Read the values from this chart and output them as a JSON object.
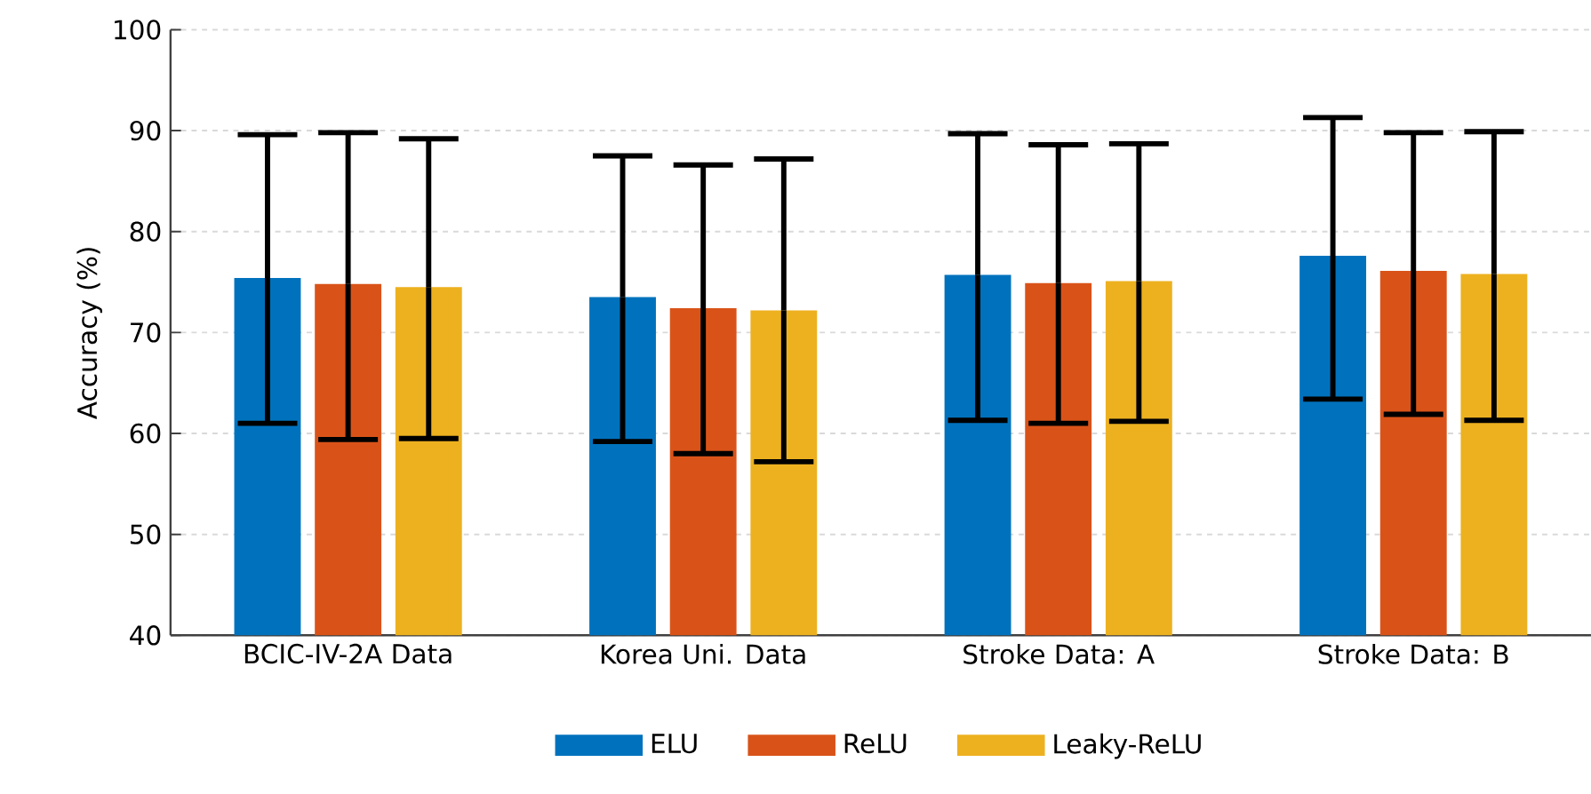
{
  "chart_data": {
    "type": "bar",
    "ylabel": "Accuracy (%)",
    "categories": [
      "BCIC-IV-2A Data",
      "Korea Uni. Data",
      "Stroke Data: A",
      "Stroke Data: B"
    ],
    "series": [
      {
        "name": "ELU",
        "color": "#0072bd",
        "values": [
          75.4,
          73.5,
          75.7,
          77.6
        ],
        "errors": [
          [
            61.0,
            89.6
          ],
          [
            59.2,
            87.5
          ],
          [
            61.3,
            89.7
          ],
          [
            63.4,
            91.3
          ]
        ]
      },
      {
        "name": "ReLU",
        "color": "#d95319",
        "values": [
          74.8,
          72.4,
          74.9,
          76.1
        ],
        "errors": [
          [
            59.4,
            89.8
          ],
          [
            58.0,
            86.6
          ],
          [
            61.0,
            88.6
          ],
          [
            61.9,
            89.8
          ]
        ]
      },
      {
        "name": "Leaky-ReLU",
        "color": "#edb120",
        "values": [
          74.5,
          72.2,
          75.1,
          75.8
        ],
        "errors": [
          [
            59.5,
            89.2
          ],
          [
            57.2,
            87.2
          ],
          [
            61.2,
            88.7
          ],
          [
            61.3,
            89.9
          ]
        ]
      }
    ],
    "ylim": [
      40,
      100
    ],
    "yticks": [
      40,
      50,
      60,
      70,
      80,
      90,
      100
    ],
    "grid": "y",
    "legend": "bottom"
  }
}
